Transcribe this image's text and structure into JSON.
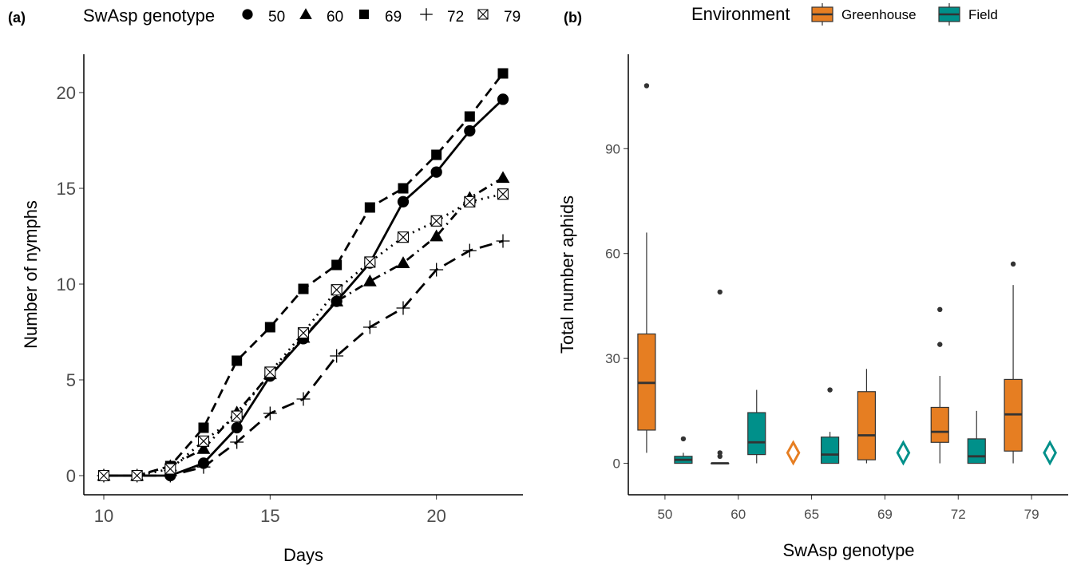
{
  "chart_data": [
    {
      "type": "line",
      "panel_label": "(a)",
      "xlabel": "Days",
      "ylabel": "Number of nymphs",
      "xlim": [
        9.4,
        22.6
      ],
      "ylim": [
        -1,
        22
      ],
      "xticks": [
        10,
        15,
        20
      ],
      "yticks": [
        0,
        5,
        10,
        15,
        20
      ],
      "legend": {
        "title": "SwAsp genotype",
        "position": "top"
      },
      "x": [
        10,
        11,
        12,
        13,
        14,
        15,
        16,
        17,
        18,
        19,
        20,
        21,
        22
      ],
      "series": [
        {
          "name": "50",
          "marker": "circle",
          "line": "solid",
          "values": [
            0,
            0,
            0,
            0.65,
            2.5,
            5.2,
            7.15,
            9.1,
            11.1,
            14.3,
            15.85,
            18.0,
            19.65
          ]
        },
        {
          "name": "60",
          "marker": "triangle",
          "line": "dotdash",
          "values": [
            0,
            0,
            0.5,
            1.4,
            3.3,
            5.3,
            7.2,
            9.1,
            10.15,
            11.1,
            12.5,
            14.5,
            15.55
          ]
        },
        {
          "name": "69",
          "marker": "square",
          "line": "dashed",
          "values": [
            0,
            0,
            0.5,
            2.5,
            6.0,
            7.75,
            9.75,
            11.0,
            14.0,
            15.0,
            16.75,
            18.75,
            21.0
          ]
        },
        {
          "name": "72",
          "marker": "plus",
          "line": "longdash",
          "values": [
            0,
            0,
            0,
            0.45,
            1.75,
            3.25,
            4.0,
            6.25,
            7.75,
            8.75,
            10.75,
            11.75,
            12.25
          ]
        },
        {
          "name": "79",
          "marker": "square-x",
          "line": "dotted",
          "values": [
            0,
            0,
            0.35,
            1.8,
            3.1,
            5.4,
            7.45,
            9.7,
            11.15,
            12.45,
            13.3,
            14.3,
            14.7
          ]
        }
      ]
    },
    {
      "type": "box",
      "panel_label": "(b)",
      "xlabel": "SwAsp genotype",
      "ylabel": "Total number aphids",
      "categories": [
        "50",
        "60",
        "65",
        "69",
        "72",
        "79"
      ],
      "ylim": [
        -9,
        117
      ],
      "yticks": [
        0,
        30,
        60,
        90
      ],
      "legend": {
        "title": "Environment",
        "position": "top",
        "entries": [
          {
            "name": "Greenhouse",
            "color": "#E67E22"
          },
          {
            "name": "Field",
            "color": "#00908A"
          }
        ]
      },
      "series": [
        {
          "name": "Greenhouse",
          "color": "#E67E22",
          "boxes": [
            {
              "category": "50",
              "min": 3,
              "q1": 9.5,
              "median": 23,
              "q3": 37,
              "max": 66,
              "outliers": [
                108
              ]
            },
            {
              "category": "60",
              "min": 0,
              "q1": 0,
              "median": 0,
              "q3": 0,
              "max": 0,
              "outliers": [
                49,
                3,
                2
              ]
            },
            {
              "category": "69",
              "min": 0,
              "q1": 1,
              "median": 8,
              "q3": 20.5,
              "max": 27,
              "outliers": []
            },
            {
              "category": "72",
              "min": 0,
              "q1": 6,
              "median": 9,
              "q3": 16,
              "max": 25,
              "outliers": [
                44,
                34
              ]
            },
            {
              "category": "79",
              "min": 0,
              "q1": 3.5,
              "median": 14,
              "q3": 24,
              "max": 51,
              "outliers": [
                57
              ]
            }
          ],
          "missing": [
            {
              "category": "65",
              "marker": "diamond",
              "value": 3
            }
          ]
        },
        {
          "name": "Field",
          "color": "#00908A",
          "boxes": [
            {
              "category": "50",
              "min": 0,
              "q1": 0,
              "median": 1,
              "q3": 2,
              "max": 3,
              "outliers": [
                7
              ]
            },
            {
              "category": "60",
              "min": 0,
              "q1": 2.5,
              "median": 6,
              "q3": 14.5,
              "max": 21,
              "outliers": []
            },
            {
              "category": "65",
              "min": 0,
              "q1": 0,
              "median": 2.5,
              "q3": 7.5,
              "max": 9,
              "outliers": [
                21
              ]
            },
            {
              "category": "72",
              "min": 0,
              "q1": 0,
              "median": 2,
              "q3": 7,
              "max": 15,
              "outliers": []
            }
          ],
          "missing": [
            {
              "category": "69",
              "marker": "diamond",
              "value": 3
            },
            {
              "category": "79",
              "marker": "diamond",
              "value": 3
            }
          ]
        }
      ]
    }
  ]
}
